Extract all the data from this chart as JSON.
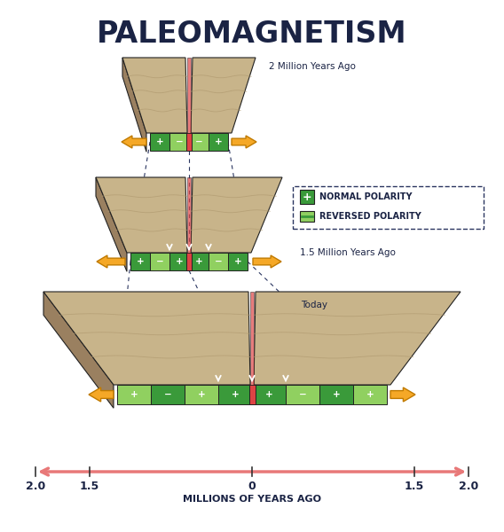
{
  "title": "PALEOMAGNETISM",
  "title_fontsize": 24,
  "title_color": "#1a2344",
  "bg_color": "#ffffff",
  "legend_normal_label": "NORMAL POLARITY",
  "legend_reversed_label": "REVERSED POLARITY",
  "legend_border_color": "#2a3560",
  "arrow_color": "#f5a827",
  "arrow_edge": "#c07a00",
  "timeline_color": "#e87878",
  "xlabel": "MILLIONS OF YEARS AGO",
  "label_2mya": "2 Million Years Ago",
  "label_15mya": "1.5 Million Years Ago",
  "label_today": "Today",
  "green_dark": "#3a9a3a",
  "green_light": "#90d060",
  "rock_tan": "#c8b48a",
  "rock_dark": "#9a8060",
  "rock_mid": "#b09a70",
  "lava_color": "#dd4444",
  "outline_color": "#222222",
  "text_white": "#ffffff",
  "dashed_color": "#2a3560",
  "tick_color": "#333333"
}
